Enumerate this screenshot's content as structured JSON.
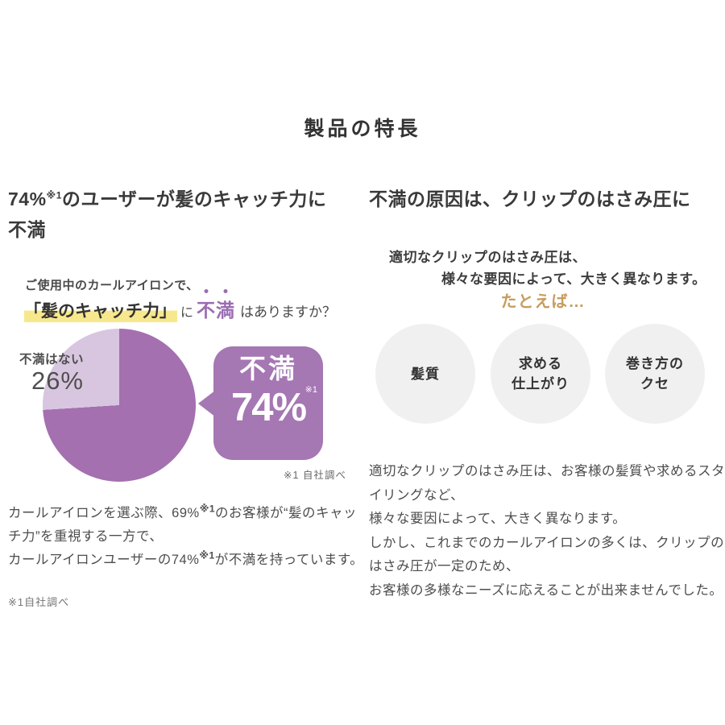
{
  "page": {
    "title": "製品の特長"
  },
  "colors": {
    "pie_dissatisfied": "#a470af",
    "pie_satisfied": "#d8c6e0",
    "bubble": "#a577b3",
    "highlight_yellow": "#f7e88d",
    "emphasis_purple": "#9a6cb1",
    "lead_gold": "#c79c5e",
    "factor_circle_gray": "#f0f0f1"
  },
  "chart_data": {
    "type": "pie",
    "title": "ご使用中のカールアイロンで、「髪のキャッチ力」に不満はありますか？",
    "labels": [
      "不満",
      "不満はない"
    ],
    "values": [
      74,
      26
    ],
    "unit": "%",
    "colors": [
      "#a470af",
      "#d8c6e0"
    ],
    "note": "※1 自社調べ",
    "start_angle": "top, clockwise, 不満 first"
  },
  "left": {
    "heading": {
      "prefix": "74%",
      "sup": "※1",
      "rest1": "のユーザーが髪のキャッチ力に",
      "rest2": "不満"
    },
    "question": {
      "line1": "ご使用中のカールアイロンで、",
      "highlight": "「髪のキャッチ力」",
      "particle": "に",
      "emph1": "不",
      "emph2": "満",
      "suffix": "はありますか？"
    },
    "pie_label": {
      "name": "不満はない",
      "value": "26%"
    },
    "bubble": {
      "label": "不満",
      "value": "74%",
      "sup": "※1"
    },
    "chart_note": "※1 自社調べ",
    "paragraph": {
      "p1a": "カールアイロンを選ぶ際、69%",
      "p1sup": "※1",
      "p1b": "のお客様が“髪のキャッチ力”を重視する一方で、",
      "p2a": "カールアイロンユーザーの74%",
      "p2sup": "※1",
      "p2b": "が不満を持っています。"
    },
    "footnote": "※1自社調べ"
  },
  "right": {
    "heading": "不満の原因は、クリップのはさみ圧に",
    "sub1": "適切なクリップのはさみ圧は、",
    "sub2": "様々な要因によって、大きく異なります。",
    "lead": "たとえば…",
    "factors": [
      {
        "l1": "髪質",
        "l2": ""
      },
      {
        "l1": "求める",
        "l2": "仕上がり"
      },
      {
        "l1": "巻き方の",
        "l2": "クセ"
      }
    ],
    "paragraph": {
      "l1": "適切なクリップのはさみ圧は、お客様の髪質や求めるスタイリングなど、",
      "l2": "様々な要因によって、大きく異なります。",
      "l3": "しかし、これまでのカールアイロンの多くは、クリップのはさみ圧が一定のため、",
      "l4": "お客様の多様なニーズに応えることが出来ませんでした。"
    }
  }
}
